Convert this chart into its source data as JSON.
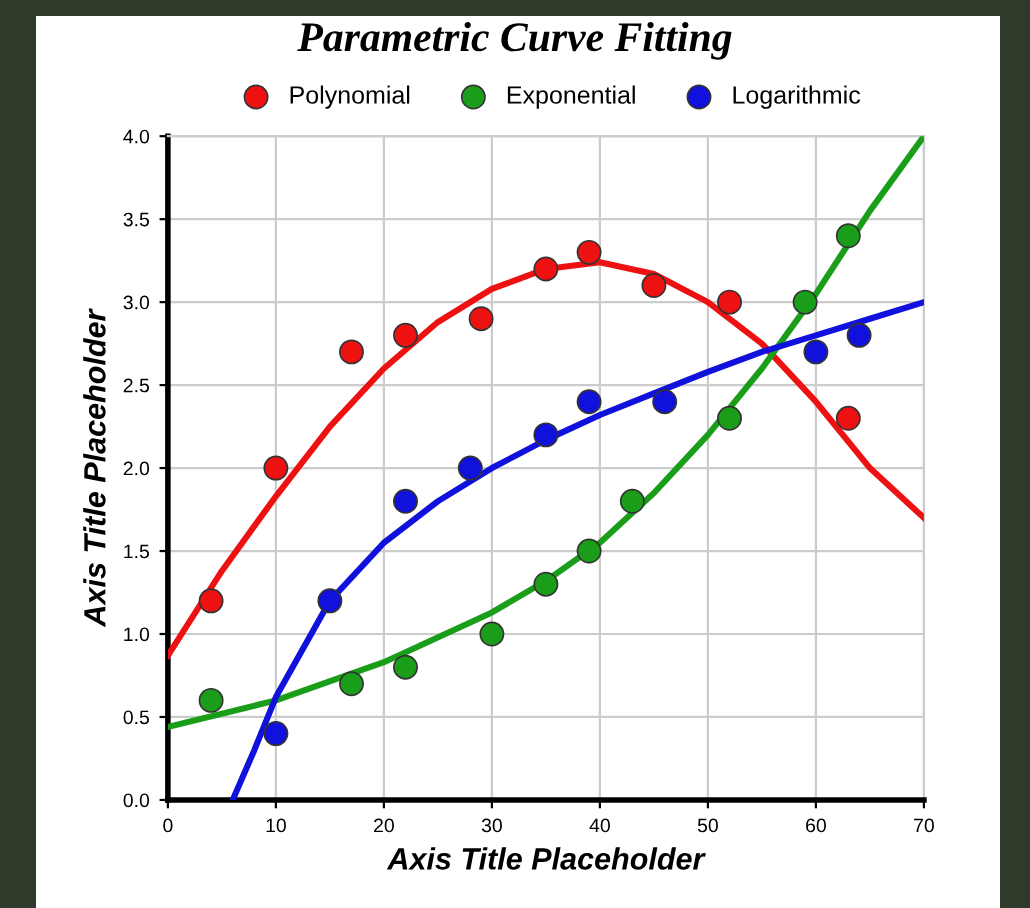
{
  "chart_data": {
    "type": "scatter",
    "title": "Parametric Curve Fitting",
    "xlabel": "Axis Title Placeholder",
    "ylabel": "Axis Title Placeholder",
    "xlim": [
      0,
      70
    ],
    "xticks": [
      0,
      10,
      20,
      30,
      40,
      50,
      60,
      70
    ],
    "ylim": [
      0,
      4.0
    ],
    "yticks": [
      {
        "value": 0,
        "label": "0.0"
      },
      {
        "value": 0.5,
        "label": "0.5"
      },
      {
        "value": 1,
        "label": "1.0"
      },
      {
        "value": 1.5,
        "label": "1.5"
      },
      {
        "value": 2,
        "label": "2.0"
      },
      {
        "value": 2.5,
        "label": "2.5"
      },
      {
        "value": 3,
        "label": "3.0"
      },
      {
        "value": 3.5,
        "label": "3.5"
      },
      {
        "value": 4,
        "label": "4.0"
      }
    ],
    "grid": true,
    "legend": "top",
    "marker": "circle",
    "series": [
      {
        "name": "Polynomial",
        "color": "#ee1111",
        "x": [
          4,
          10,
          17,
          22,
          29,
          35,
          39,
          45,
          52,
          63
        ],
        "values": [
          1.2,
          2.0,
          2.7,
          2.8,
          2.9,
          3.2,
          3.3,
          3.1,
          3.0,
          2.3
        ]
      },
      {
        "name": "Exponential",
        "color": "#1a9e1a",
        "x": [
          4,
          17,
          22,
          30,
          35,
          39,
          43,
          52,
          59,
          63
        ],
        "values": [
          0.6,
          0.7,
          0.8,
          1.0,
          1.3,
          1.5,
          1.8,
          2.3,
          3.0,
          3.4
        ]
      },
      {
        "name": "Logarithmic",
        "color": "#1111dd",
        "x": [
          10,
          15,
          22,
          28,
          35,
          39,
          46,
          60,
          64
        ],
        "values": [
          0.4,
          1.2,
          1.8,
          2.0,
          2.2,
          2.4,
          2.4,
          2.7,
          2.8
        ]
      },
      {
        "type": "line",
        "marker": "none",
        "color": "#ee1111",
        "x": [
          0,
          5,
          10,
          15,
          20,
          25,
          30,
          35,
          40,
          45,
          50,
          55,
          60,
          65,
          70
        ],
        "values": [
          0.87,
          1.38,
          1.83,
          2.25,
          2.6,
          2.88,
          3.08,
          3.2,
          3.24,
          3.17,
          3.0,
          2.75,
          2.4,
          2.0,
          1.7
        ]
      },
      {
        "type": "line",
        "marker": "none",
        "color": "#1a9e1a",
        "x": [
          0,
          10,
          20,
          30,
          35,
          40,
          45,
          50,
          55,
          60,
          65,
          70
        ],
        "values": [
          0.44,
          0.6,
          0.83,
          1.13,
          1.32,
          1.55,
          1.85,
          2.2,
          2.6,
          3.05,
          3.55,
          4.0
        ]
      },
      {
        "type": "line",
        "marker": "none",
        "color": "#1111dd",
        "x": [
          6,
          8,
          10,
          15,
          20,
          25,
          30,
          35,
          40,
          45,
          50,
          55,
          60,
          65,
          70
        ],
        "values": [
          0,
          0.3,
          0.62,
          1.2,
          1.55,
          1.8,
          2.0,
          2.17,
          2.32,
          2.45,
          2.58,
          2.7,
          2.8,
          2.9,
          3.0
        ]
      }
    ]
  }
}
